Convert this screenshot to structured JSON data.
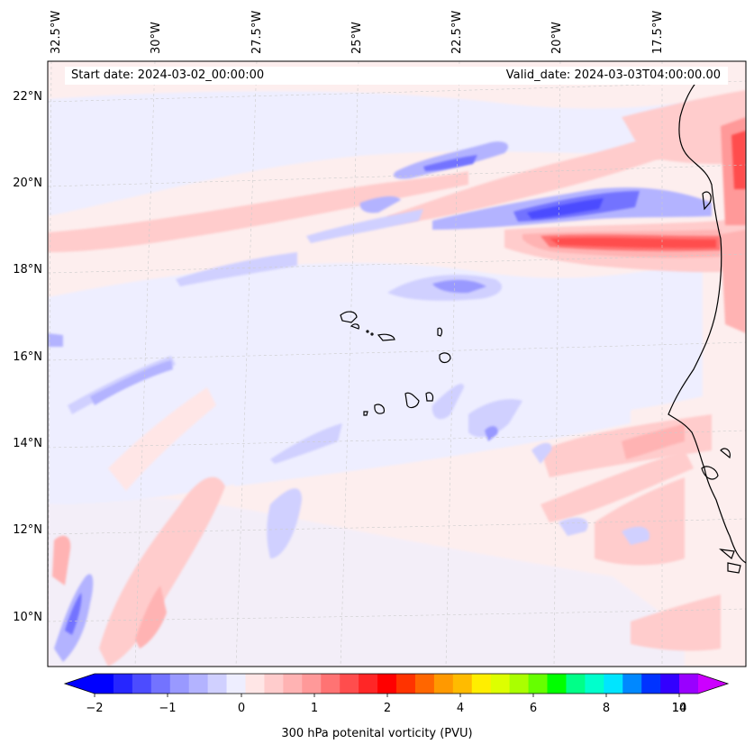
{
  "header": {
    "start_date": "Start date: 2024-03-02_00:00:00",
    "valid_date": "Valid_date: 2024-03-03T04:00:00.00"
  },
  "map": {
    "longitude_labels": [
      "32.5°W",
      "30°W",
      "27.5°W",
      "25°W",
      "22.5°W",
      "20°W",
      "17.5°W"
    ],
    "latitude_labels": [
      "22°N",
      "20°N",
      "18°N",
      "16°N",
      "14°N",
      "12°N",
      "10°N"
    ],
    "extent": {
      "lon_min": -32.6,
      "lon_max": -15.2,
      "lat_min": 8.9,
      "lat_max": 22.8
    }
  },
  "colorbar": {
    "title": "300 hPa potenital vorticity (PVU)",
    "tick_labels": [
      "−2",
      "−1",
      "0",
      "1",
      "2",
      "4",
      "6",
      "8",
      "10",
      "14"
    ],
    "colors": [
      "#0000ff",
      "#2626ff",
      "#4c4cff",
      "#7373ff",
      "#9999ff",
      "#b3b3ff",
      "#d0d0ff",
      "#eeeeff",
      "#ffe6e6",
      "#ffcccc",
      "#ffb3b3",
      "#ff9999",
      "#ff7373",
      "#ff4d4d",
      "#ff2626",
      "#ff0000",
      "#ff3300",
      "#ff6600",
      "#ff9900",
      "#ffbb00",
      "#ffee00",
      "#ddff00",
      "#aaff00",
      "#66ff00",
      "#00ff00",
      "#00ff88",
      "#00ffcc",
      "#00e5ff",
      "#0088ff",
      "#0033ff",
      "#3300ff",
      "#9900ff"
    ],
    "under_color": "#0000ff",
    "over_color": "#cc00ff"
  }
}
